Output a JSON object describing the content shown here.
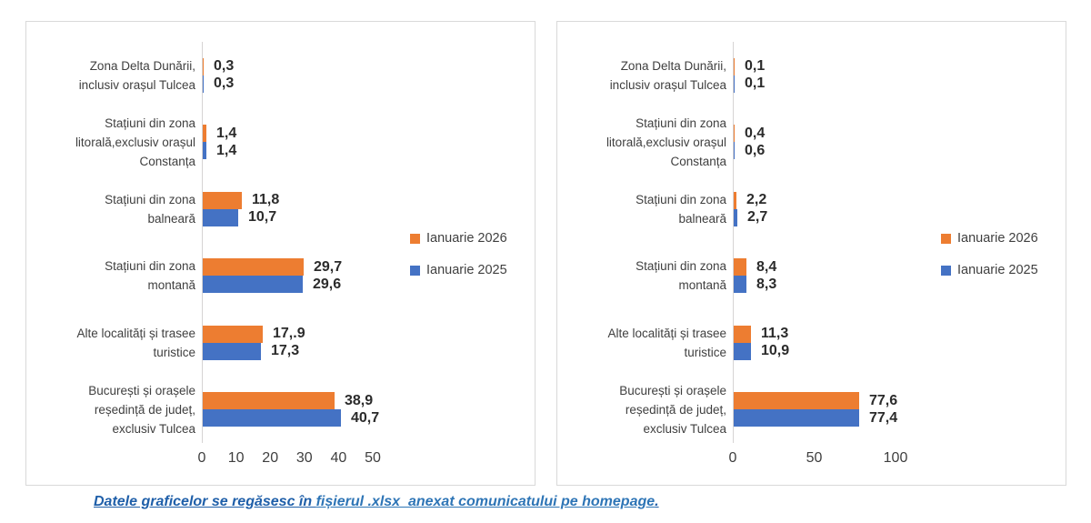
{
  "colors": {
    "serie_2026": "#ED7D31",
    "serie_2025": "#4472C4",
    "footer_dark": "#1F5FA9",
    "footer_link": "#2E75B6"
  },
  "legend": [
    {
      "label": "Ianuarie 2026",
      "color": "#ED7D31"
    },
    {
      "label": "Ianuarie 2025",
      "color": "#4472C4"
    }
  ],
  "footer": {
    "text_dark": "Datele graficelor se regăsesc în ",
    "text_link": "fișierul .xlsx  anexat comunicatului pe homepage",
    "text_end": "."
  },
  "chart_data": [
    {
      "type": "bar",
      "orientation": "horizontal",
      "title": "",
      "xlabel": "",
      "ylabel": "",
      "xlim": [
        0,
        50
      ],
      "xticks": [
        0,
        10,
        20,
        30,
        40,
        50
      ],
      "grid": false,
      "legend_position": "right-middle",
      "categories": [
        [
          "Zona Delta Dunării,",
          "inclusiv orașul Tulcea"
        ],
        [
          "Stațiuni din zona",
          "litorală,exclusiv orașul",
          "Constanța"
        ],
        [
          "Stațiuni din zona",
          "balneară"
        ],
        [
          "Stațiuni din zona",
          "montană"
        ],
        [
          "Alte localități și trasee",
          "turistice"
        ],
        [
          "București și orașele",
          "reședință de județ,",
          "exclusiv Tulcea"
        ]
      ],
      "series": [
        {
          "name": "Ianuarie 2026",
          "color": "#ED7D31",
          "values": [
            0.3,
            1.4,
            11.8,
            29.7,
            17.9,
            38.9
          ],
          "labels": [
            "0,3",
            "1,4",
            "11,8",
            "29,7",
            "17,.9",
            "38,9"
          ]
        },
        {
          "name": "Ianuarie 2025",
          "color": "#4472C4",
          "values": [
            0.3,
            1.4,
            10.7,
            29.6,
            17.3,
            40.7
          ],
          "labels": [
            "0,3",
            "1,4",
            "10,7",
            "29,6",
            "17,3",
            "40,7"
          ]
        }
      ]
    },
    {
      "type": "bar",
      "orientation": "horizontal",
      "title": "",
      "xlabel": "",
      "ylabel": "",
      "xlim": [
        0,
        100
      ],
      "xticks": [
        0,
        50,
        100
      ],
      "grid": false,
      "legend_position": "right-middle",
      "categories": [
        [
          "Zona Delta Dunării,",
          "inclusiv orașul Tulcea"
        ],
        [
          "Stațiuni din zona",
          "litorală,exclusiv orașul",
          "Constanța"
        ],
        [
          "Stațiuni din zona",
          "balneară"
        ],
        [
          "Stațiuni din zona",
          "montană"
        ],
        [
          "Alte localități și trasee",
          "turistice"
        ],
        [
          "București și orașele",
          "reședință de județ,",
          "exclusiv Tulcea"
        ]
      ],
      "series": [
        {
          "name": "Ianuarie 2026",
          "color": "#ED7D31",
          "values": [
            0.1,
            0.4,
            2.2,
            8.4,
            11.3,
            77.6
          ],
          "labels": [
            "0,1",
            "0,4",
            "2,2",
            "8,4",
            "11,3",
            "77,6"
          ]
        },
        {
          "name": "Ianuarie 2025",
          "color": "#4472C4",
          "values": [
            0.1,
            0.6,
            2.7,
            8.3,
            10.9,
            77.4
          ],
          "labels": [
            "0,1",
            "0,6",
            "2,7",
            "8,3",
            "10,9",
            "77,4"
          ]
        }
      ]
    }
  ]
}
